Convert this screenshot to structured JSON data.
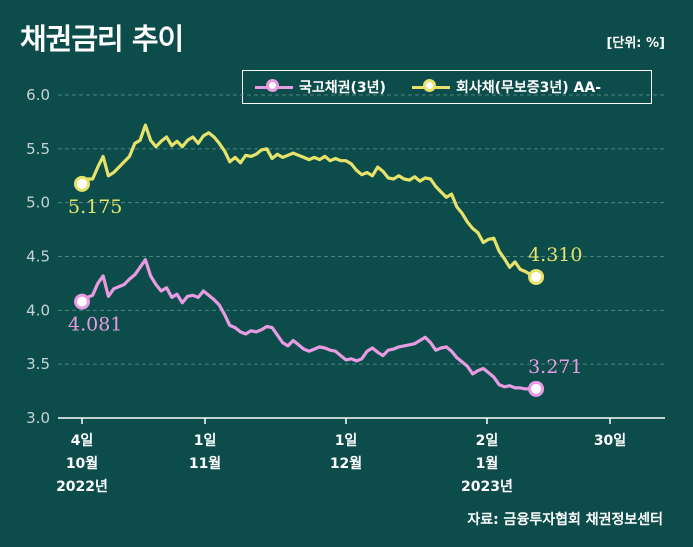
{
  "header": {
    "title": "채권금리 추이",
    "unit": "[단위: %]"
  },
  "source": "자료: 금융투자협회 채권정보센터",
  "colors": {
    "background": "#0c4d4b",
    "treasury": "#e89be0",
    "corporate": "#e6e26a",
    "grid": "#4e8280"
  },
  "chart_data": {
    "type": "line",
    "title": "채권금리 추이",
    "ylabel": "%",
    "ylim": [
      3.0,
      6.0
    ],
    "yticks": [
      "6.0",
      "5.5",
      "5.0",
      "4.5",
      "4.0",
      "3.5",
      "3.0"
    ],
    "ytick_values": [
      6.0,
      5.5,
      5.0,
      4.5,
      4.0,
      3.5,
      3.0
    ],
    "x_range": [
      0,
      1
    ],
    "xticks": [
      {
        "x": 0.0,
        "lines": [
          "4일",
          "10월",
          "2022년"
        ]
      },
      {
        "x": 0.233,
        "lines": [
          "1일",
          "11월"
        ]
      },
      {
        "x": 0.5,
        "lines": [
          "1일",
          "12월"
        ]
      },
      {
        "x": 0.767,
        "lines": [
          "2일",
          "1월",
          "2023년"
        ]
      },
      {
        "x": 1.0,
        "lines": [
          "30일"
        ]
      }
    ],
    "series": [
      {
        "name": "회사채(무보증3년) AA-",
        "start_label": "5.175",
        "end_label": "4.310",
        "points": [
          [
            0.0,
            5.175
          ],
          [
            0.01,
            5.22
          ],
          [
            0.02,
            5.22
          ],
          [
            0.03,
            5.33
          ],
          [
            0.04,
            5.43
          ],
          [
            0.05,
            5.25
          ],
          [
            0.06,
            5.28
          ],
          [
            0.07,
            5.33
          ],
          [
            0.08,
            5.38
          ],
          [
            0.09,
            5.43
          ],
          [
            0.1,
            5.55
          ],
          [
            0.11,
            5.58
          ],
          [
            0.12,
            5.72
          ],
          [
            0.13,
            5.58
          ],
          [
            0.14,
            5.52
          ],
          [
            0.15,
            5.57
          ],
          [
            0.16,
            5.61
          ],
          [
            0.17,
            5.53
          ],
          [
            0.18,
            5.57
          ],
          [
            0.19,
            5.52
          ],
          [
            0.2,
            5.58
          ],
          [
            0.21,
            5.61
          ],
          [
            0.22,
            5.55
          ],
          [
            0.23,
            5.62
          ],
          [
            0.24,
            5.65
          ],
          [
            0.25,
            5.61
          ],
          [
            0.26,
            5.55
          ],
          [
            0.27,
            5.48
          ],
          [
            0.28,
            5.38
          ],
          [
            0.29,
            5.42
          ],
          [
            0.3,
            5.37
          ],
          [
            0.31,
            5.44
          ],
          [
            0.32,
            5.43
          ],
          [
            0.33,
            5.45
          ],
          [
            0.34,
            5.49
          ],
          [
            0.35,
            5.5
          ],
          [
            0.36,
            5.41
          ],
          [
            0.37,
            5.45
          ],
          [
            0.38,
            5.42
          ],
          [
            0.39,
            5.44
          ],
          [
            0.4,
            5.46
          ],
          [
            0.41,
            5.44
          ],
          [
            0.42,
            5.42
          ],
          [
            0.43,
            5.4
          ],
          [
            0.44,
            5.42
          ],
          [
            0.45,
            5.4
          ],
          [
            0.46,
            5.43
          ],
          [
            0.47,
            5.39
          ],
          [
            0.48,
            5.41
          ],
          [
            0.49,
            5.39
          ],
          [
            0.5,
            5.39
          ],
          [
            0.51,
            5.36
          ],
          [
            0.52,
            5.3
          ],
          [
            0.53,
            5.26
          ],
          [
            0.54,
            5.28
          ],
          [
            0.55,
            5.25
          ],
          [
            0.56,
            5.33
          ],
          [
            0.57,
            5.29
          ],
          [
            0.58,
            5.23
          ],
          [
            0.59,
            5.22
          ],
          [
            0.6,
            5.25
          ],
          [
            0.61,
            5.22
          ],
          [
            0.62,
            5.21
          ],
          [
            0.63,
            5.24
          ],
          [
            0.64,
            5.2
          ],
          [
            0.65,
            5.23
          ],
          [
            0.66,
            5.22
          ],
          [
            0.67,
            5.15
          ],
          [
            0.68,
            5.1
          ],
          [
            0.69,
            5.05
          ],
          [
            0.7,
            5.08
          ],
          [
            0.71,
            4.96
          ],
          [
            0.72,
            4.9
          ],
          [
            0.73,
            4.82
          ],
          [
            0.74,
            4.76
          ],
          [
            0.75,
            4.72
          ],
          [
            0.76,
            4.63
          ],
          [
            0.77,
            4.66
          ],
          [
            0.78,
            4.67
          ],
          [
            0.79,
            4.55
          ],
          [
            0.8,
            4.48
          ],
          [
            0.81,
            4.4
          ],
          [
            0.82,
            4.45
          ],
          [
            0.83,
            4.38
          ],
          [
            0.84,
            4.36
          ],
          [
            0.85,
            4.33
          ],
          [
            0.86,
            4.31
          ]
        ]
      },
      {
        "name": "국고채권(3년)",
        "start_label": "4.081",
        "end_label": "3.271",
        "points": [
          [
            0.0,
            4.081
          ],
          [
            0.01,
            4.12
          ],
          [
            0.02,
            4.14
          ],
          [
            0.03,
            4.25
          ],
          [
            0.04,
            4.32
          ],
          [
            0.05,
            4.13
          ],
          [
            0.06,
            4.2
          ],
          [
            0.07,
            4.22
          ],
          [
            0.08,
            4.24
          ],
          [
            0.09,
            4.29
          ],
          [
            0.1,
            4.33
          ],
          [
            0.11,
            4.4
          ],
          [
            0.12,
            4.47
          ],
          [
            0.13,
            4.32
          ],
          [
            0.14,
            4.24
          ],
          [
            0.15,
            4.18
          ],
          [
            0.16,
            4.21
          ],
          [
            0.17,
            4.12
          ],
          [
            0.18,
            4.15
          ],
          [
            0.19,
            4.07
          ],
          [
            0.2,
            4.13
          ],
          [
            0.21,
            4.14
          ],
          [
            0.22,
            4.12
          ],
          [
            0.23,
            4.18
          ],
          [
            0.24,
            4.14
          ],
          [
            0.25,
            4.1
          ],
          [
            0.26,
            4.05
          ],
          [
            0.27,
            3.96
          ],
          [
            0.28,
            3.86
          ],
          [
            0.29,
            3.84
          ],
          [
            0.3,
            3.8
          ],
          [
            0.31,
            3.78
          ],
          [
            0.32,
            3.81
          ],
          [
            0.33,
            3.8
          ],
          [
            0.34,
            3.82
          ],
          [
            0.35,
            3.85
          ],
          [
            0.36,
            3.84
          ],
          [
            0.37,
            3.77
          ],
          [
            0.38,
            3.7
          ],
          [
            0.39,
            3.67
          ],
          [
            0.4,
            3.72
          ],
          [
            0.41,
            3.68
          ],
          [
            0.42,
            3.64
          ],
          [
            0.43,
            3.62
          ],
          [
            0.44,
            3.64
          ],
          [
            0.45,
            3.66
          ],
          [
            0.46,
            3.65
          ],
          [
            0.47,
            3.63
          ],
          [
            0.48,
            3.62
          ],
          [
            0.49,
            3.58
          ],
          [
            0.5,
            3.54
          ],
          [
            0.51,
            3.55
          ],
          [
            0.52,
            3.53
          ],
          [
            0.53,
            3.55
          ],
          [
            0.54,
            3.62
          ],
          [
            0.55,
            3.65
          ],
          [
            0.56,
            3.61
          ],
          [
            0.57,
            3.58
          ],
          [
            0.58,
            3.63
          ],
          [
            0.59,
            3.64
          ],
          [
            0.6,
            3.66
          ],
          [
            0.61,
            3.67
          ],
          [
            0.62,
            3.68
          ],
          [
            0.63,
            3.69
          ],
          [
            0.64,
            3.72
          ],
          [
            0.65,
            3.75
          ],
          [
            0.66,
            3.7
          ],
          [
            0.67,
            3.63
          ],
          [
            0.68,
            3.65
          ],
          [
            0.69,
            3.66
          ],
          [
            0.7,
            3.62
          ],
          [
            0.71,
            3.56
          ],
          [
            0.72,
            3.52
          ],
          [
            0.73,
            3.48
          ],
          [
            0.74,
            3.41
          ],
          [
            0.75,
            3.44
          ],
          [
            0.76,
            3.46
          ],
          [
            0.77,
            3.42
          ],
          [
            0.78,
            3.38
          ],
          [
            0.79,
            3.31
          ],
          [
            0.8,
            3.29
          ],
          [
            0.81,
            3.3
          ],
          [
            0.82,
            3.28
          ],
          [
            0.83,
            3.28
          ],
          [
            0.84,
            3.27
          ],
          [
            0.85,
            3.27
          ],
          [
            0.86,
            3.271
          ]
        ]
      }
    ],
    "legend": "top-right"
  }
}
